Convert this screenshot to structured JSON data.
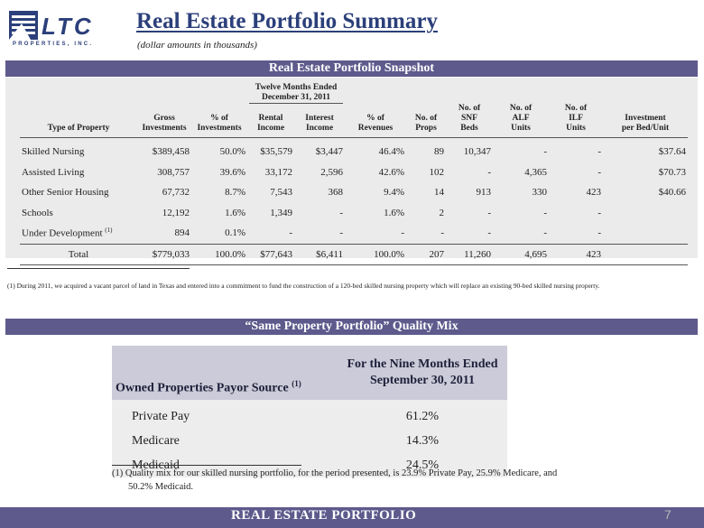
{
  "logo": {
    "letters": "LTC",
    "subtext": "PROPERTIES, INC."
  },
  "header": {
    "title": "Real Estate Portfolio Summary",
    "subtitle": "(dollar amounts in thousands)"
  },
  "snapshot": {
    "bar_title": "Real Estate Portfolio Snapshot",
    "group_header_line1": "Twelve Months Ended",
    "group_header_line2": "December 31, 2011",
    "columns": {
      "type": "Type of Property",
      "gross_1": "Gross",
      "gross_2": "Investments",
      "pct_inv_1": "% of",
      "pct_inv_2": "Investments",
      "rental_1": "Rental",
      "rental_2": "Income",
      "interest_1": "Interest",
      "interest_2": "Income",
      "pct_rev_1": "% of",
      "pct_rev_2": "Revenues",
      "props_1": "No. of",
      "props_2": "Props",
      "snf_1": "No. of",
      "snf_2": "SNF",
      "snf_3": "Beds",
      "alf_1": "No. of",
      "alf_2": "ALF",
      "alf_3": "Units",
      "ilf_1": "No. of",
      "ilf_2": "ILF",
      "ilf_3": "Units",
      "inv_1": "Investment",
      "inv_2": "per Bed/Unit"
    },
    "rows": [
      {
        "type": "Skilled Nursing",
        "note": "",
        "gross": "$389,458",
        "pct_inv": "50.0%",
        "rental": "$35,579",
        "interest": "$3,447",
        "pct_rev": "46.4%",
        "props": "89",
        "snf": "10,347",
        "alf": "-",
        "ilf": "-",
        "per_unit": "$37.64"
      },
      {
        "type": "Assisted Living",
        "note": "",
        "gross": "308,757",
        "pct_inv": "39.6%",
        "rental": "33,172",
        "interest": "2,596",
        "pct_rev": "42.6%",
        "props": "102",
        "snf": "-",
        "alf": "4,365",
        "ilf": "-",
        "per_unit": "$70.73"
      },
      {
        "type": "Other Senior Housing",
        "note": "",
        "gross": "67,732",
        "pct_inv": "8.7%",
        "rental": "7,543",
        "interest": "368",
        "pct_rev": "9.4%",
        "props": "14",
        "snf": "913",
        "alf": "330",
        "ilf": "423",
        "per_unit": "$40.66"
      },
      {
        "type": "Schools",
        "note": "",
        "gross": "12,192",
        "pct_inv": "1.6%",
        "rental": "1,349",
        "interest": "-",
        "pct_rev": "1.6%",
        "props": "2",
        "snf": "-",
        "alf": "-",
        "ilf": "-",
        "per_unit": ""
      },
      {
        "type": "Under Development",
        "note": "(1)",
        "gross": "894",
        "pct_inv": "0.1%",
        "rental": "-",
        "interest": "-",
        "pct_rev": "-",
        "props": "-",
        "snf": "-",
        "alf": "-",
        "ilf": "-",
        "per_unit": ""
      }
    ],
    "total": {
      "label": "Total",
      "gross": "$779,033",
      "pct_inv": "100.0%",
      "rental": "$77,643",
      "interest": "$6,411",
      "pct_rev": "100.0%",
      "props": "207",
      "snf": "11,260",
      "alf": "4,695",
      "ilf": "423"
    },
    "footnote": "(1)  During 2011, we acquired a vacant parcel of land in Texas and entered into a commitment to fund the construction of a 120-bed skilled nursing property which will replace an existing 90-bed skilled nursing property."
  },
  "quality": {
    "bar_title": "“Same Property Portfolio” Quality Mix",
    "col1_header": "Owned Properties Payor Source",
    "col1_note": "(1)",
    "col2_header_line1": "For the Nine Months Ended",
    "col2_header_line2": "September 30, 2011",
    "rows": [
      {
        "label": "Private Pay",
        "value": "61.2%"
      },
      {
        "label": "Medicare",
        "value": "14.3%"
      },
      {
        "label": "Medicaid",
        "value": "24.5%"
      }
    ],
    "footnote_line1": "(1)  Quality mix for our skilled nursing portfolio, for the period presented, is 23.9% Private Pay, 25.9% Medicare, and",
    "footnote_line2": "50.2% Medicaid."
  },
  "footer": {
    "title": "REAL ESTATE PORTFOLIO",
    "page_number": "7"
  },
  "colors": {
    "brand_navy": "#2b3f7a",
    "bar_purple": "#5e5a8c",
    "table_bg": "#ebebeb",
    "header_lavender": "#cbcbd9"
  }
}
